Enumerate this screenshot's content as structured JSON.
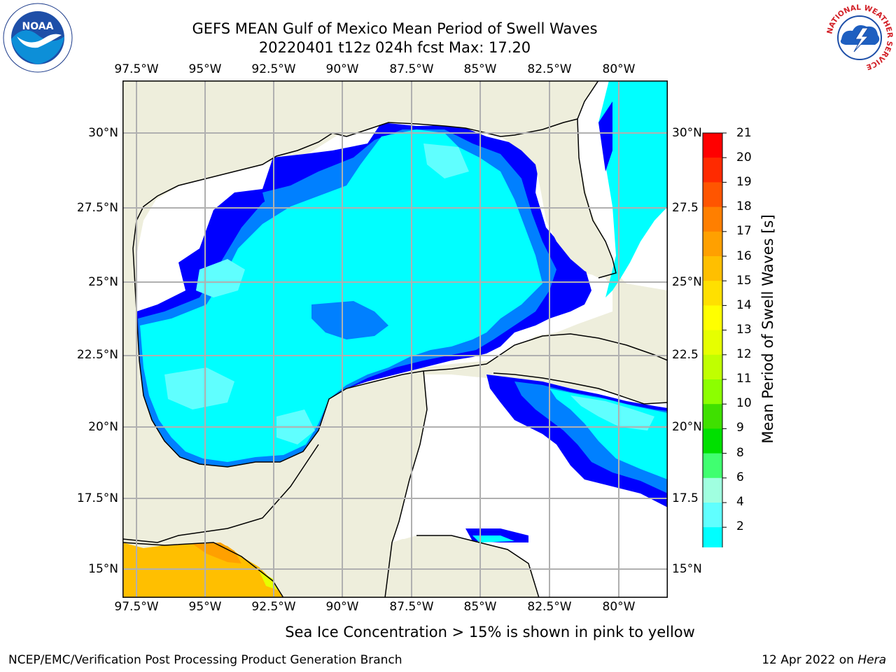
{
  "title": {
    "line1": "GEFS MEAN Gulf of Mexico Mean Period of Swell Waves",
    "line2": "20220401 t12z 024h fcst   Max: 17.20"
  },
  "lon_ticks": [
    "97.5°W",
    "95°W",
    "92.5°W",
    "90°W",
    "87.5°W",
    "85°W",
    "82.5°W",
    "80°W"
  ],
  "lat_ticks_left": [
    "30°N",
    "27.5°N",
    "25°N",
    "22.5°N",
    "20°N",
    "17.5°N",
    "15°N"
  ],
  "lat_ticks_right": [
    "30°N",
    "27.5",
    "25°N",
    "22.5",
    "20°N",
    "17.5",
    "15°N"
  ],
  "colorbar": {
    "title": "Mean Period of Swell Waves [s]",
    "labels": [
      "21",
      "20",
      "19",
      "18",
      "17",
      "16",
      "15",
      "14",
      "13",
      "12",
      "11",
      "10",
      "9",
      "8",
      "6",
      "4",
      "2"
    ],
    "colors": [
      "#ff0000",
      "#ff2a00",
      "#ff5500",
      "#ff7f00",
      "#ffa000",
      "#ffbf00",
      "#ffe000",
      "#ffff00",
      "#e6ff00",
      "#c0ff00",
      "#8cff00",
      "#3fe000",
      "#00e000",
      "#40ff70",
      "#a0ffe0",
      "#60ffff",
      "#00ffff",
      "#0080ff",
      "#0000ff"
    ]
  },
  "map_colors": {
    "land": "#eeeedc",
    "ocean_missing": "#ffffff",
    "deep_blue": "#0000ff",
    "mid_blue": "#0080ff",
    "cyan": "#00ffff",
    "light_cyan": "#60ffff",
    "pale_cyan": "#a0ffff",
    "orange": "#ffbf00",
    "dark_orange": "#ffa000",
    "grid": "#b0b0b0"
  },
  "logos": {
    "noaa": "NOAA",
    "nws": "NATIONAL WEATHER SERVICE"
  },
  "note": "Sea Ice Concentration > 15% is shown in pink to yellow",
  "footer": {
    "left": "NCEP/EMC/Verification Post Processing Product Generation Branch",
    "right_date": "12 Apr 2022 on ",
    "right_host": "Hera"
  }
}
